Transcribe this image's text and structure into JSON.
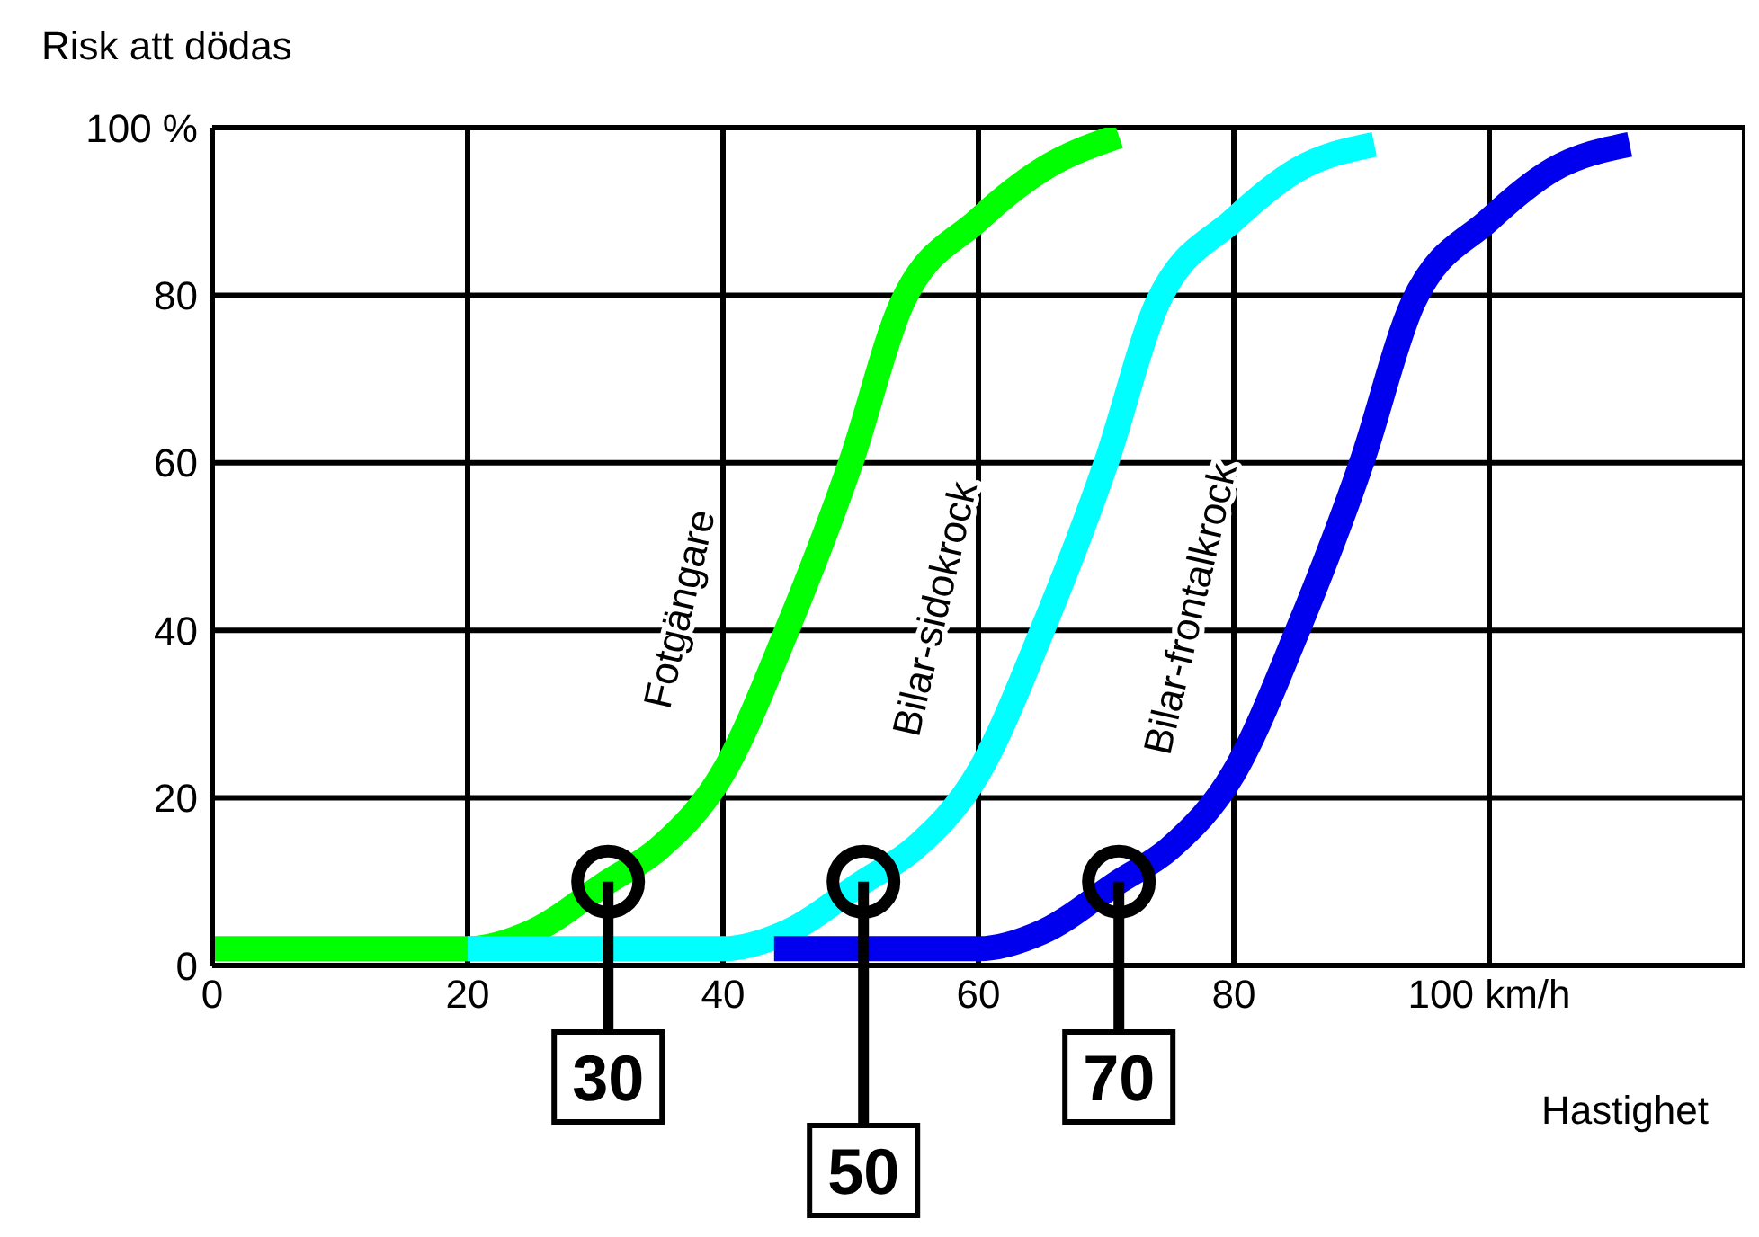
{
  "chart_data": {
    "type": "line",
    "ylabel": "Risk att dödas",
    "xlabel": "Hastighet",
    "xlim": [
      0,
      120
    ],
    "ylim": [
      0,
      100
    ],
    "xticks": [
      0,
      20,
      40,
      60,
      80,
      {
        "value": 100,
        "label": "100 km/h"
      }
    ],
    "yticks": [
      0,
      20,
      40,
      60,
      80,
      {
        "value": 100,
        "label": "100 %"
      }
    ],
    "grid": true,
    "legend": false,
    "marker": "none",
    "line_style": "solid",
    "series": [
      {
        "name": "Fotgängare",
        "color": "#00ff00",
        "x": [
          0,
          20,
          25,
          31,
          35,
          40,
          45,
          50,
          54,
          60,
          65,
          71
        ],
        "values": [
          2,
          2,
          4,
          10,
          14,
          23,
          40,
          60,
          79,
          89,
          95,
          99
        ]
      },
      {
        "name": "Bilar-sidokrock",
        "color": "#00ffff",
        "x": [
          20,
          40,
          45,
          51,
          55,
          60,
          65,
          70,
          74,
          80,
          85,
          91
        ],
        "values": [
          2,
          2,
          4,
          10,
          14,
          23,
          40,
          60,
          79,
          89,
          95,
          98
        ]
      },
      {
        "name": "Bilar-frontalkrock",
        "color": "#0000ee",
        "x": [
          44,
          60,
          65,
          71,
          75,
          80,
          85,
          90,
          94,
          100,
          105,
          111
        ],
        "values": [
          2,
          2,
          4,
          10,
          14,
          23,
          40,
          60,
          79,
          89,
          95,
          98
        ]
      }
    ],
    "annotations": [
      {
        "text": "30",
        "x": 31,
        "y": 10
      },
      {
        "text": "50",
        "x": 51,
        "y": 10
      },
      {
        "text": "70",
        "x": 71,
        "y": 10
      }
    ]
  }
}
